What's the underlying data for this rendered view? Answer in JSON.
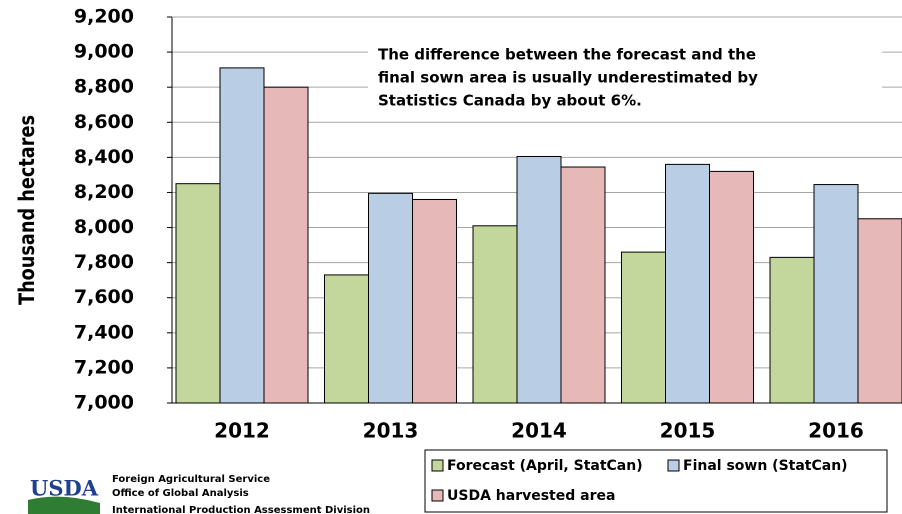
{
  "chart_data": {
    "type": "bar",
    "y_label": "Thousand hectares",
    "categories": [
      "2012",
      "2013",
      "2014",
      "2015",
      "2016"
    ],
    "series": [
      {
        "name": "Forecast (April, StatCan)",
        "color": "#c3d69b",
        "values": [
          8250,
          7730,
          8010,
          7860,
          7830
        ]
      },
      {
        "name": "Final sown (StatCan)",
        "color": "#b9cde5",
        "values": [
          8910,
          8195,
          8405,
          8360,
          8245
        ]
      },
      {
        "name": "USDA harvested area",
        "color": "#e6b9b8",
        "values": [
          8800,
          8160,
          8345,
          8320,
          8050
        ]
      }
    ],
    "ylim": [
      7000,
      9200
    ],
    "yticks": [
      {
        "value": 7000,
        "label": "7,000"
      },
      {
        "value": 7200,
        "label": "7,200"
      },
      {
        "value": 7400,
        "label": "7,400"
      },
      {
        "value": 7600,
        "label": "7,600"
      },
      {
        "value": 7800,
        "label": "7,800"
      },
      {
        "value": 8000,
        "label": "8,000"
      },
      {
        "value": 8200,
        "label": "8,200"
      },
      {
        "value": 8400,
        "label": "8,400"
      },
      {
        "value": 8600,
        "label": "8,600"
      },
      {
        "value": 8800,
        "label": "8,800"
      },
      {
        "value": 9000,
        "label": "9,000"
      },
      {
        "value": 9200,
        "label": "9,200"
      }
    ],
    "grid": true,
    "annotation": [
      "The difference between the forecast and the",
      "final sown area is usually underestimated by",
      "Statistics Canada by about 6%."
    ]
  },
  "logo": {
    "mark": "USDA",
    "lines": [
      "Foreign Agricultural Service",
      "Office of Global Analysis",
      "International Production Assessment Division"
    ]
  }
}
